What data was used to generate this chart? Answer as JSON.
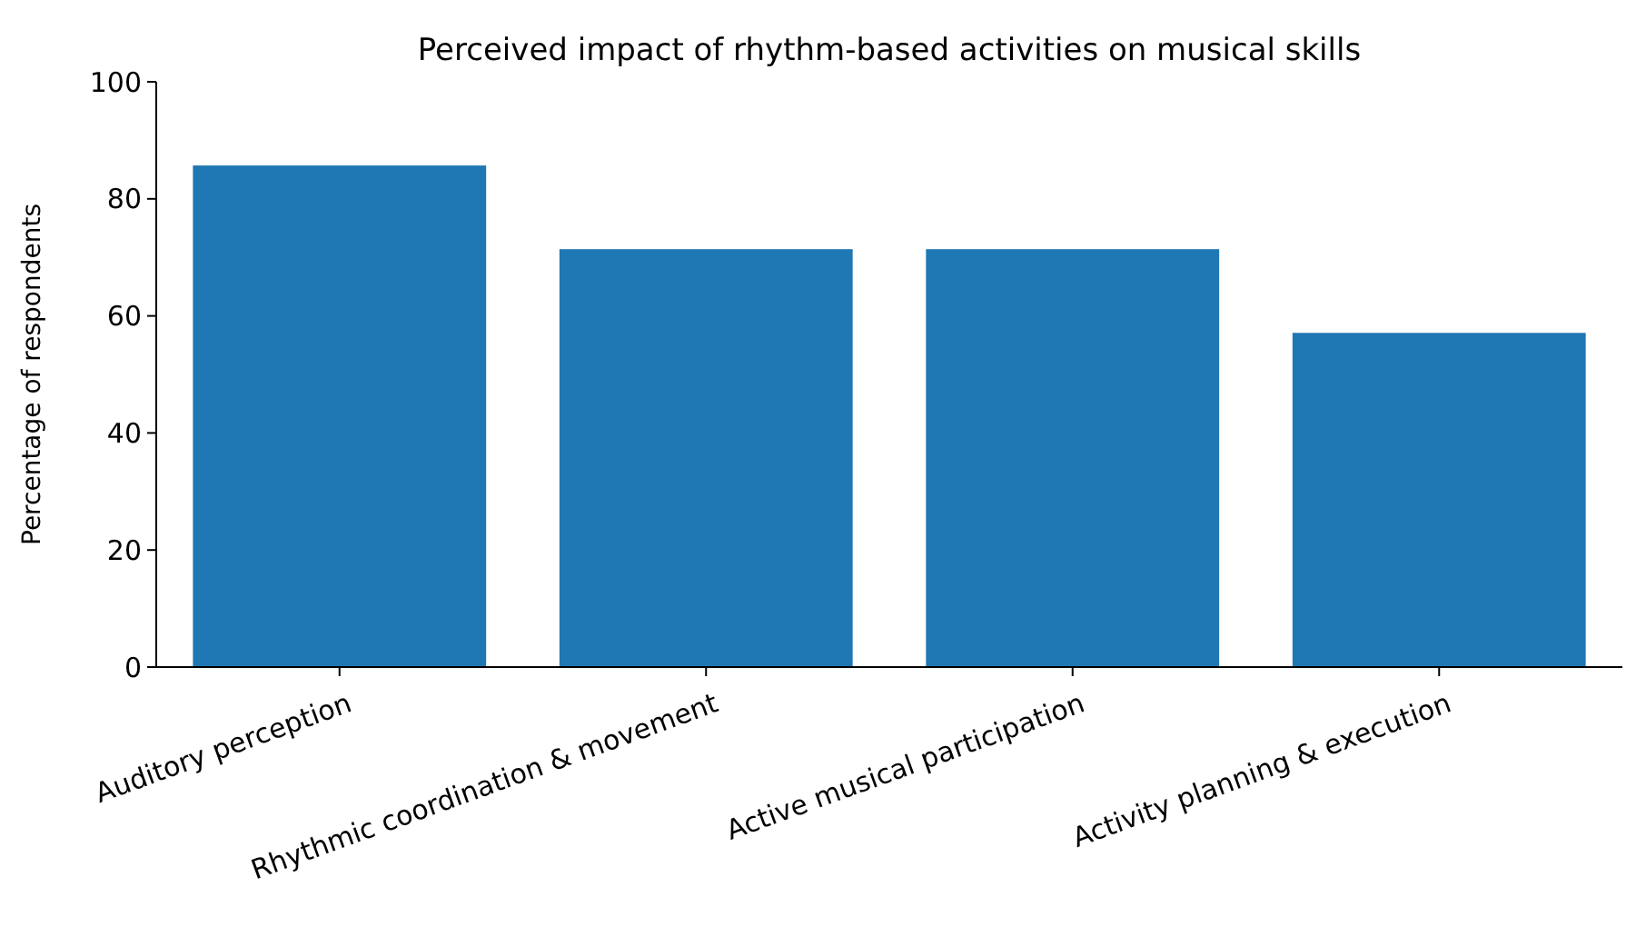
{
  "chart_data": {
    "type": "bar",
    "title": "Perceived impact of rhythm-based activities on musical skills",
    "ylabel": "Percentage of respondents",
    "categories": [
      "Auditory perception",
      "Rhythmic coordination & movement",
      "Active musical participation",
      "Activity planning & execution"
    ],
    "values": [
      85.7,
      71.4,
      71.4,
      57.1
    ],
    "color": "#1f77b4",
    "ylim": [
      0,
      100
    ],
    "yticks": [
      0,
      20,
      40,
      60,
      80,
      100
    ],
    "grid": false
  }
}
